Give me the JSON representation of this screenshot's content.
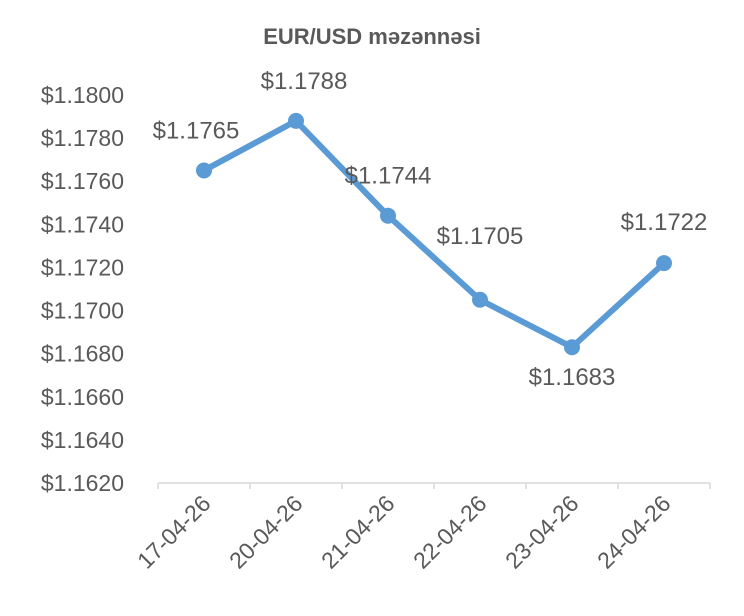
{
  "chart_data": {
    "type": "line",
    "title": "EUR/USD məzənnəsi",
    "categories": [
      "17-04-26",
      "20-04-26",
      "21-04-26",
      "22-04-26",
      "23-04-26",
      "24-04-26"
    ],
    "series": [
      {
        "values": [
          1.1765,
          1.1788,
          1.1744,
          1.1705,
          1.1683,
          1.1722
        ],
        "data_labels": [
          "$1.1765",
          "$1.1788",
          "$1.1744",
          "$1.1705",
          "$1.1683",
          "$1.1722"
        ],
        "color": "#5b9bd5"
      }
    ],
    "ylim": [
      1.162,
      1.18
    ],
    "y_ticks": [
      1.162,
      1.164,
      1.166,
      1.168,
      1.17,
      1.172,
      1.174,
      1.176,
      1.178,
      1.18
    ],
    "y_tick_labels": [
      "$1.1620",
      "$1.1640",
      "$1.1660",
      "$1.1680",
      "$1.1700",
      "$1.1720",
      "$1.1740",
      "$1.1760",
      "$1.1780",
      "$1.1800"
    ],
    "xlabel": "",
    "ylabel": "",
    "grid": false,
    "legend": "none",
    "x_tick_rotation": -45
  }
}
